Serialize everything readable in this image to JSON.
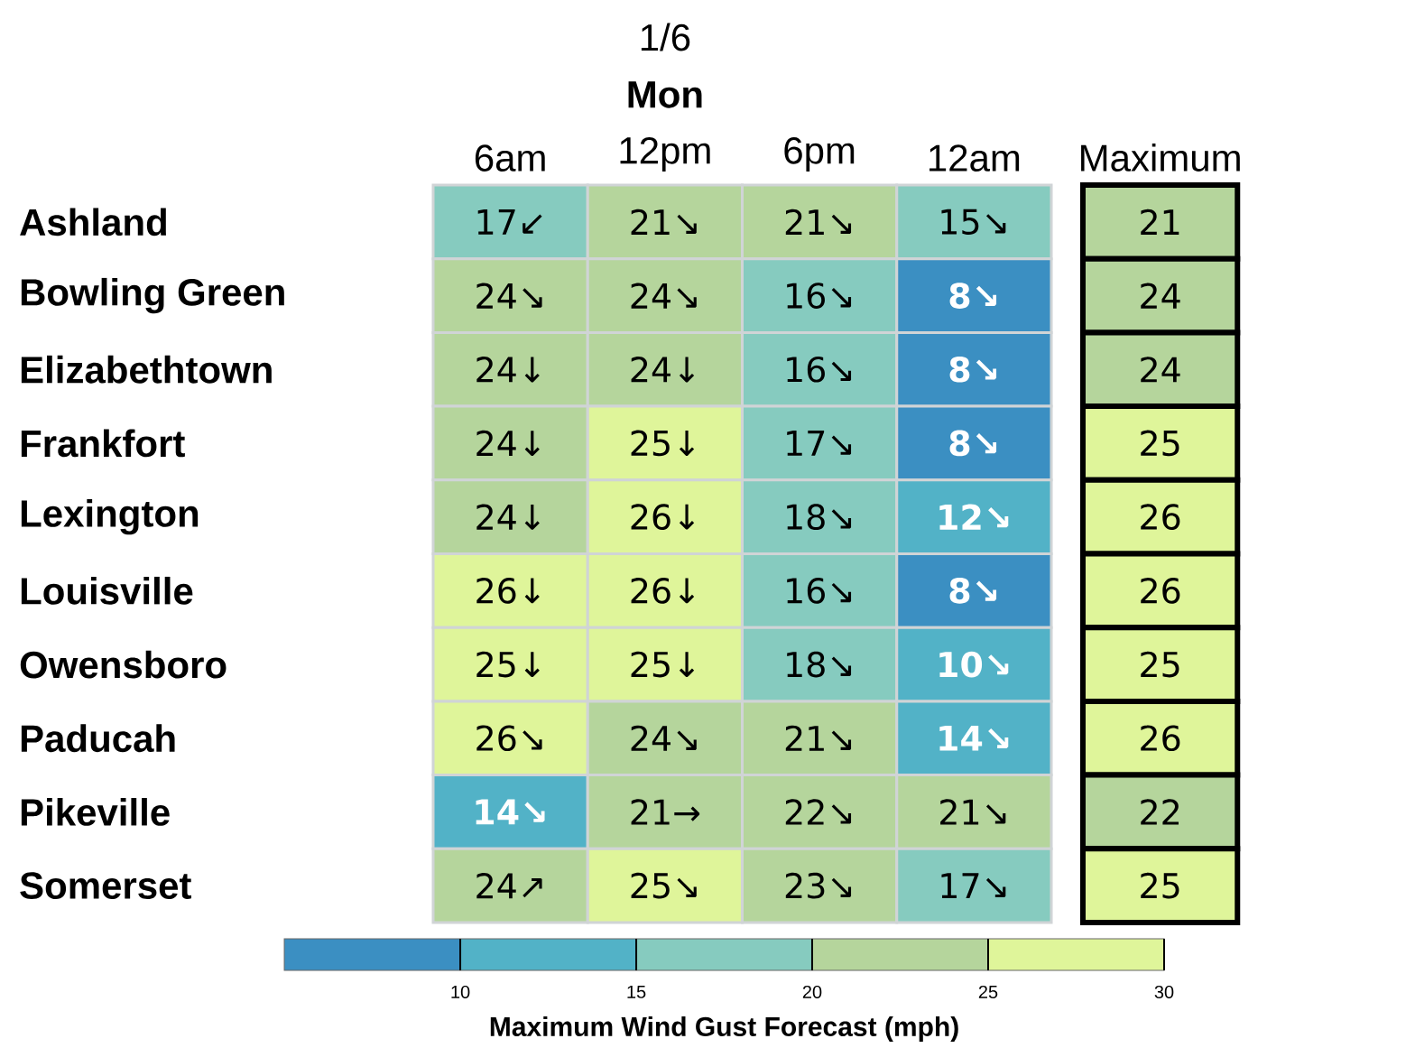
{
  "chart_data": {
    "type": "heatmap",
    "categories": [
      "6am",
      "12pm",
      "6pm",
      "12am",
      "Maximum"
    ],
    "y_categories": [
      "Ashland",
      "Bowling Green",
      "Elizabethtown",
      "Frankfort",
      "Lexington",
      "Louisville",
      "Owensboro",
      "Paducah",
      "Pikeville",
      "Somerset"
    ],
    "cells": [
      [
        17,
        21,
        21,
        15,
        21
      ],
      [
        24,
        24,
        16,
        8,
        24
      ],
      [
        24,
        24,
        16,
        8,
        24
      ],
      [
        24,
        25,
        17,
        8,
        25
      ],
      [
        24,
        26,
        18,
        12,
        26
      ],
      [
        26,
        26,
        16,
        8,
        26
      ],
      [
        25,
        25,
        18,
        10,
        25
      ],
      [
        26,
        24,
        21,
        14,
        26
      ],
      [
        14,
        21,
        22,
        21,
        22
      ],
      [
        24,
        25,
        23,
        17,
        25
      ]
    ],
    "cell_labels": [
      [
        "17↙",
        "21↘",
        "21↘",
        "15↘",
        "21"
      ],
      [
        "24↘",
        "24↘",
        "16↘",
        "8↘",
        "24"
      ],
      [
        "24↓",
        "24↓",
        "16↘",
        "8↘",
        "24"
      ],
      [
        "24↓",
        "25↓",
        "17↘",
        "8↘",
        "25"
      ],
      [
        "24↓",
        "26↓",
        "18↘",
        "12↘",
        "26"
      ],
      [
        "26↓",
        "26↓",
        "16↘",
        "8↘",
        "26"
      ],
      [
        "25↓",
        "25↓",
        "18↘",
        "10↘",
        "25"
      ],
      [
        "26↘",
        "24↘",
        "21↘",
        "14↘",
        "26"
      ],
      [
        "14↘",
        "21→",
        "22↘",
        "21↘",
        "22"
      ],
      [
        "24↗",
        "25↘",
        "23↘",
        "17↘",
        "25"
      ]
    ],
    "clim": [
      5,
      30
    ],
    "cticks": [
      10,
      15,
      20,
      25,
      30
    ],
    "clabel": "Maximum Wind Gust Forecast (mph)",
    "annotations": [
      "1/6",
      "Mon"
    ]
  }
}
